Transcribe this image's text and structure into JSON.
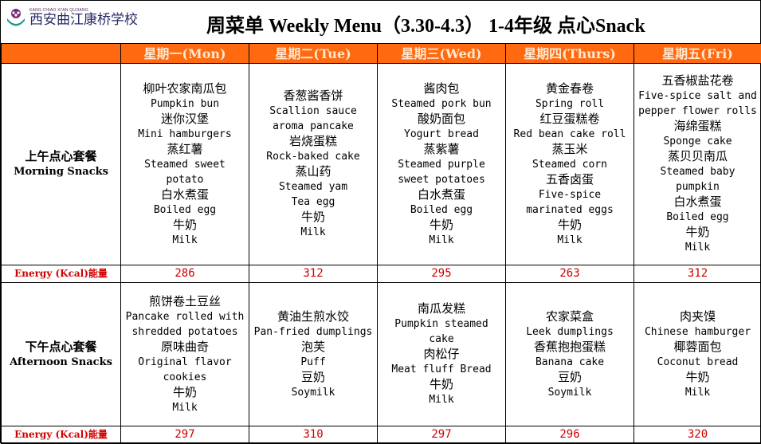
{
  "school": {
    "name_en": "KANG CHIAO XI'AN QUJIANG",
    "name_cn": "西安曲江康桥学校"
  },
  "title": "周菜单 Weekly Menu（3.30-4.3） 1-4年级 点心Snack",
  "colors": {
    "header_bg": "#ff6a10",
    "energy_text": "#d00000"
  },
  "days": [
    "星期一(Mon)",
    "星期二(Tue)",
    "星期三(Wed)",
    "星期四(Thurs)",
    "星期五(Fri)"
  ],
  "morning": {
    "label_cn": "上午点心套餐",
    "label_en": "Morning Snacks",
    "cells": [
      [
        "柳叶农家南瓜包",
        "Pumpkin bun",
        "迷你汉堡",
        "Mini hamburgers",
        "蒸红薯",
        "Steamed sweet",
        "potato",
        "白水煮蛋",
        "Boiled egg",
        "牛奶",
        "Milk"
      ],
      [
        "香葱酱香饼",
        "Scallion sauce",
        "aroma pancake",
        "岩烧蛋糕",
        "Rock-baked cake",
        "蒸山药",
        "Steamed yam",
        "Tea egg",
        "牛奶",
        "Milk"
      ],
      [
        "酱肉包",
        "Steamed pork bun",
        "酸奶面包",
        "Yogurt bread",
        "蒸紫薯",
        "Steamed purple",
        "sweet potatoes",
        "白水煮蛋",
        "Boiled egg",
        "牛奶",
        "Milk"
      ],
      [
        "黄金春卷",
        "Spring roll",
        "红豆蛋糕卷",
        "Red bean cake roll",
        "蒸玉米",
        "Steamed corn",
        "五香卤蛋",
        "Five-spice",
        "marinated eggs",
        "牛奶",
        "Milk"
      ],
      [
        "五香椒盐花卷",
        "Five-spice salt and",
        "pepper flower rolls",
        "海绵蛋糕",
        "Sponge cake",
        "蒸贝贝南瓜",
        "Steamed baby",
        "pumpkin",
        "白水煮蛋",
        "Boiled egg",
        "牛奶",
        "Milk"
      ]
    ],
    "energy": [
      "286",
      "312",
      "295",
      "263",
      "312"
    ]
  },
  "afternoon": {
    "label_cn": "下午点心套餐",
    "label_en": "Afternoon Snacks",
    "cells": [
      [
        "煎饼卷土豆丝",
        "Pancake rolled with",
        "shredded potatoes",
        "原味曲奇",
        "Original flavor",
        "cookies",
        "牛奶",
        "Milk"
      ],
      [
        "黄油生煎水饺",
        "Pan-fried dumplings",
        "泡芙",
        "Puff",
        "豆奶",
        "Soymilk"
      ],
      [
        "南瓜发糕",
        "Pumpkin steamed",
        "cake",
        "肉松仔",
        "Meat fluff Bread",
        "牛奶",
        "Milk"
      ],
      [
        "农家菜盒",
        "Leek dumplings",
        "香蕉抱抱蛋糕",
        "Banana cake",
        "豆奶",
        "Soymilk"
      ],
      [
        "肉夹馍",
        "Chinese hamburger",
        "椰蓉面包",
        "Coconut bread",
        "牛奶",
        "Milk"
      ]
    ],
    "energy": [
      "297",
      "310",
      "297",
      "296",
      "320"
    ]
  },
  "energy_label": "Energy (Kcal)能量"
}
